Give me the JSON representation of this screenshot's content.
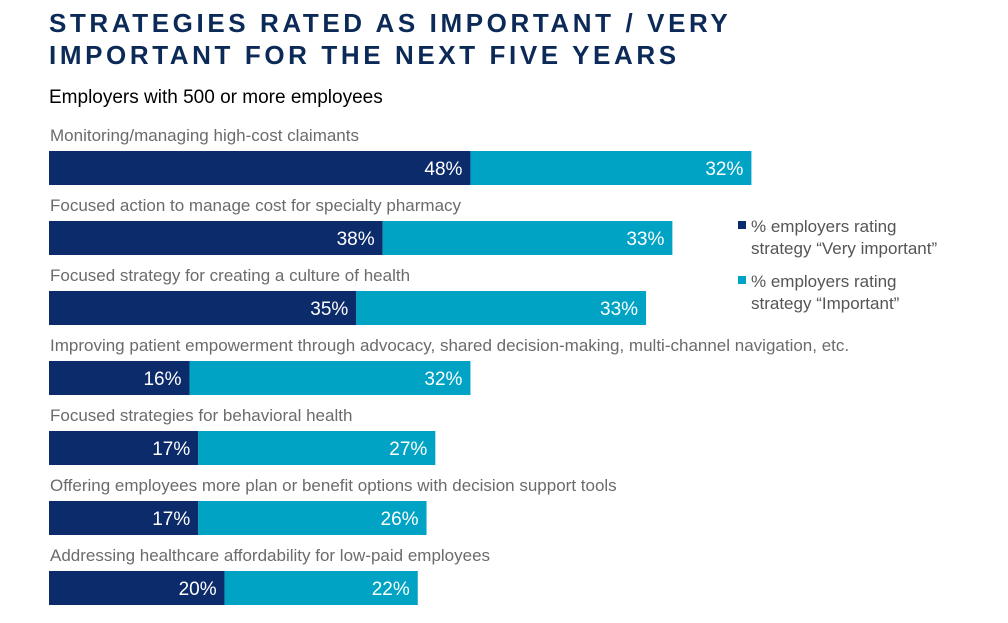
{
  "title": "STRATEGIES RATED AS IMPORTANT / VERY\nIMPORTANT FOR THE NEXT FIVE YEARS",
  "subtitle": "Employers with 500 or more employees",
  "colors": {
    "very_important": "#0c2b6b",
    "important": "#00a3c4"
  },
  "chart_data": {
    "type": "bar",
    "orientation": "horizontal",
    "stacked": true,
    "title": "STRATEGIES RATED AS IMPORTANT / VERY IMPORTANT FOR THE NEXT FIVE YEARS",
    "subtitle": "Employers with 500 or more employees",
    "xlabel": "",
    "ylabel": "",
    "grid": false,
    "legend_position": "right",
    "categories": [
      "Monitoring/managing high-cost claimants",
      "Focused action to manage cost for specialty pharmacy",
      "Focused strategy for creating a culture of health",
      "Improving patient empowerment through advocacy, shared decision-making, multi-channel navigation, etc.",
      "Focused strategies for behavioral health",
      "Offering employees more plan or benefit options with decision support tools",
      "Addressing healthcare affordability for low-paid employees"
    ],
    "series": [
      {
        "name": "% employers rating strategy “Very important”",
        "values": [
          48,
          38,
          35,
          16,
          17,
          17,
          20
        ],
        "labels": [
          "48%",
          "38%",
          "35%",
          "16%",
          "17%",
          "17%",
          "20%"
        ]
      },
      {
        "name": "% employers rating strategy “Important”",
        "values": [
          32,
          33,
          33,
          32,
          27,
          26,
          22
        ],
        "labels": [
          "32%",
          "33%",
          "33%",
          "32%",
          "27%",
          "26%",
          "22%"
        ]
      }
    ],
    "legend": [
      [
        "% employers rating",
        "strategy “Very important”"
      ],
      [
        "% employers rating",
        "strategy “Important”"
      ]
    ]
  }
}
